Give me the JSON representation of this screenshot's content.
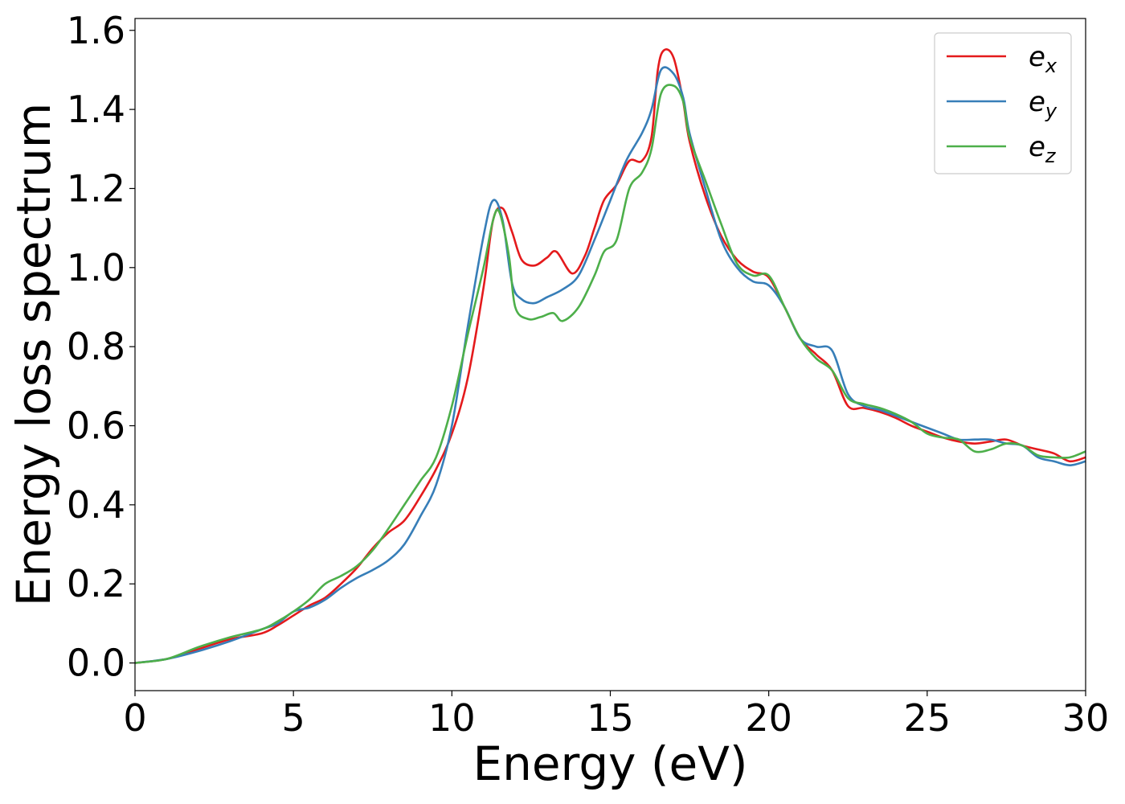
{
  "chart_data": {
    "type": "line",
    "title": "",
    "xlabel": "Energy (eV)",
    "ylabel": "Energy loss spectrum",
    "xlim": [
      0,
      30
    ],
    "ylim": [
      -0.07,
      1.63
    ],
    "xticks": [
      0,
      5,
      10,
      15,
      20,
      25,
      30
    ],
    "xtick_labels": [
      "0",
      "5",
      "10",
      "15",
      "20",
      "25",
      "30"
    ],
    "yticks": [
      0.0,
      0.2,
      0.4,
      0.6,
      0.8,
      1.0,
      1.2,
      1.4,
      1.6
    ],
    "ytick_labels": [
      "0.0",
      "0.2",
      "0.4",
      "0.6",
      "0.8",
      "1.0",
      "1.2",
      "1.4",
      "1.6"
    ],
    "grid": false,
    "legend_position": "top-right",
    "series": [
      {
        "name": "e_x",
        "legend_base": "e",
        "legend_sub": "x",
        "color": "#e41a1c",
        "points": [
          [
            0,
            0.0
          ],
          [
            1,
            0.01
          ],
          [
            2,
            0.035
          ],
          [
            3,
            0.06
          ],
          [
            4,
            0.075
          ],
          [
            4.5,
            0.095
          ],
          [
            5,
            0.12
          ],
          [
            5.5,
            0.145
          ],
          [
            6,
            0.165
          ],
          [
            6.5,
            0.2
          ],
          [
            7,
            0.24
          ],
          [
            7.5,
            0.29
          ],
          [
            8,
            0.33
          ],
          [
            8.5,
            0.36
          ],
          [
            9,
            0.42
          ],
          [
            9.5,
            0.49
          ],
          [
            10,
            0.58
          ],
          [
            10.5,
            0.72
          ],
          [
            11,
            0.95
          ],
          [
            11.3,
            1.12
          ],
          [
            11.6,
            1.15
          ],
          [
            11.9,
            1.09
          ],
          [
            12.2,
            1.02
          ],
          [
            12.6,
            1.005
          ],
          [
            13,
            1.025
          ],
          [
            13.3,
            1.04
          ],
          [
            13.8,
            0.985
          ],
          [
            14.2,
            1.03
          ],
          [
            14.5,
            1.1
          ],
          [
            14.8,
            1.17
          ],
          [
            15.2,
            1.21
          ],
          [
            15.6,
            1.27
          ],
          [
            16,
            1.27
          ],
          [
            16.3,
            1.33
          ],
          [
            16.5,
            1.5
          ],
          [
            16.7,
            1.55
          ],
          [
            17,
            1.53
          ],
          [
            17.3,
            1.42
          ],
          [
            17.5,
            1.32
          ],
          [
            18,
            1.18
          ],
          [
            18.5,
            1.08
          ],
          [
            19,
            1.02
          ],
          [
            19.5,
            0.99
          ],
          [
            20,
            0.975
          ],
          [
            20.5,
            0.9
          ],
          [
            21,
            0.82
          ],
          [
            21.5,
            0.78
          ],
          [
            22,
            0.74
          ],
          [
            22.5,
            0.65
          ],
          [
            23,
            0.645
          ],
          [
            23.5,
            0.635
          ],
          [
            24,
            0.62
          ],
          [
            24.5,
            0.6
          ],
          [
            25,
            0.585
          ],
          [
            25.5,
            0.57
          ],
          [
            26,
            0.56
          ],
          [
            26.5,
            0.555
          ],
          [
            27,
            0.56
          ],
          [
            27.5,
            0.565
          ],
          [
            28,
            0.55
          ],
          [
            28.5,
            0.54
          ],
          [
            29,
            0.53
          ],
          [
            29.5,
            0.51
          ],
          [
            30,
            0.52
          ]
        ]
      },
      {
        "name": "e_y",
        "legend_base": "e",
        "legend_sub": "y",
        "color": "#377eb8",
        "points": [
          [
            0,
            0.0
          ],
          [
            1,
            0.01
          ],
          [
            2,
            0.03
          ],
          [
            3,
            0.055
          ],
          [
            4,
            0.085
          ],
          [
            4.5,
            0.1
          ],
          [
            5,
            0.13
          ],
          [
            5.5,
            0.14
          ],
          [
            6,
            0.16
          ],
          [
            6.5,
            0.19
          ],
          [
            7,
            0.215
          ],
          [
            7.5,
            0.235
          ],
          [
            8,
            0.26
          ],
          [
            8.5,
            0.3
          ],
          [
            9,
            0.37
          ],
          [
            9.5,
            0.45
          ],
          [
            10,
            0.6
          ],
          [
            10.5,
            0.85
          ],
          [
            11,
            1.08
          ],
          [
            11.3,
            1.17
          ],
          [
            11.6,
            1.12
          ],
          [
            11.9,
            0.96
          ],
          [
            12.2,
            0.92
          ],
          [
            12.6,
            0.91
          ],
          [
            13,
            0.925
          ],
          [
            13.5,
            0.945
          ],
          [
            14,
            0.98
          ],
          [
            14.5,
            1.07
          ],
          [
            15,
            1.17
          ],
          [
            15.5,
            1.27
          ],
          [
            16,
            1.34
          ],
          [
            16.3,
            1.4
          ],
          [
            16.6,
            1.5
          ],
          [
            17,
            1.49
          ],
          [
            17.3,
            1.43
          ],
          [
            17.5,
            1.34
          ],
          [
            18,
            1.2
          ],
          [
            18.5,
            1.07
          ],
          [
            19,
            1.0
          ],
          [
            19.5,
            0.965
          ],
          [
            20,
            0.955
          ],
          [
            20.5,
            0.9
          ],
          [
            21,
            0.82
          ],
          [
            21.5,
            0.8
          ],
          [
            22,
            0.79
          ],
          [
            22.5,
            0.68
          ],
          [
            23,
            0.65
          ],
          [
            23.5,
            0.64
          ],
          [
            24,
            0.625
          ],
          [
            24.5,
            0.61
          ],
          [
            25,
            0.595
          ],
          [
            25.5,
            0.58
          ],
          [
            26,
            0.565
          ],
          [
            26.5,
            0.565
          ],
          [
            27,
            0.565
          ],
          [
            27.5,
            0.555
          ],
          [
            28,
            0.55
          ],
          [
            28.5,
            0.52
          ],
          [
            29,
            0.51
          ],
          [
            29.5,
            0.5
          ],
          [
            30,
            0.51
          ]
        ]
      },
      {
        "name": "e_z",
        "legend_base": "e",
        "legend_sub": "z",
        "color": "#4daf4a",
        "points": [
          [
            0,
            0.0
          ],
          [
            1,
            0.01
          ],
          [
            2,
            0.04
          ],
          [
            3,
            0.065
          ],
          [
            4,
            0.085
          ],
          [
            4.5,
            0.105
          ],
          [
            5,
            0.13
          ],
          [
            5.5,
            0.16
          ],
          [
            6,
            0.2
          ],
          [
            6.5,
            0.22
          ],
          [
            7,
            0.245
          ],
          [
            7.5,
            0.285
          ],
          [
            8,
            0.34
          ],
          [
            8.5,
            0.4
          ],
          [
            9,
            0.46
          ],
          [
            9.5,
            0.52
          ],
          [
            10,
            0.65
          ],
          [
            10.5,
            0.83
          ],
          [
            11,
            1.0
          ],
          [
            11.3,
            1.12
          ],
          [
            11.5,
            1.14
          ],
          [
            11.8,
            1.03
          ],
          [
            12,
            0.9
          ],
          [
            12.4,
            0.87
          ],
          [
            12.8,
            0.875
          ],
          [
            13.2,
            0.885
          ],
          [
            13.5,
            0.865
          ],
          [
            14,
            0.9
          ],
          [
            14.5,
            0.98
          ],
          [
            14.8,
            1.04
          ],
          [
            15.2,
            1.07
          ],
          [
            15.6,
            1.2
          ],
          [
            16,
            1.24
          ],
          [
            16.3,
            1.3
          ],
          [
            16.6,
            1.44
          ],
          [
            17,
            1.46
          ],
          [
            17.3,
            1.42
          ],
          [
            17.5,
            1.33
          ],
          [
            18,
            1.22
          ],
          [
            18.5,
            1.11
          ],
          [
            19,
            1.01
          ],
          [
            19.5,
            0.98
          ],
          [
            20,
            0.98
          ],
          [
            20.5,
            0.9
          ],
          [
            21,
            0.82
          ],
          [
            21.5,
            0.77
          ],
          [
            22,
            0.74
          ],
          [
            22.5,
            0.67
          ],
          [
            23,
            0.655
          ],
          [
            23.5,
            0.645
          ],
          [
            24,
            0.63
          ],
          [
            24.5,
            0.61
          ],
          [
            25,
            0.58
          ],
          [
            25.5,
            0.57
          ],
          [
            26,
            0.565
          ],
          [
            26.5,
            0.535
          ],
          [
            27,
            0.54
          ],
          [
            27.5,
            0.555
          ],
          [
            28,
            0.55
          ],
          [
            28.5,
            0.525
          ],
          [
            29,
            0.52
          ],
          [
            29.5,
            0.52
          ],
          [
            30,
            0.535
          ]
        ]
      }
    ]
  }
}
